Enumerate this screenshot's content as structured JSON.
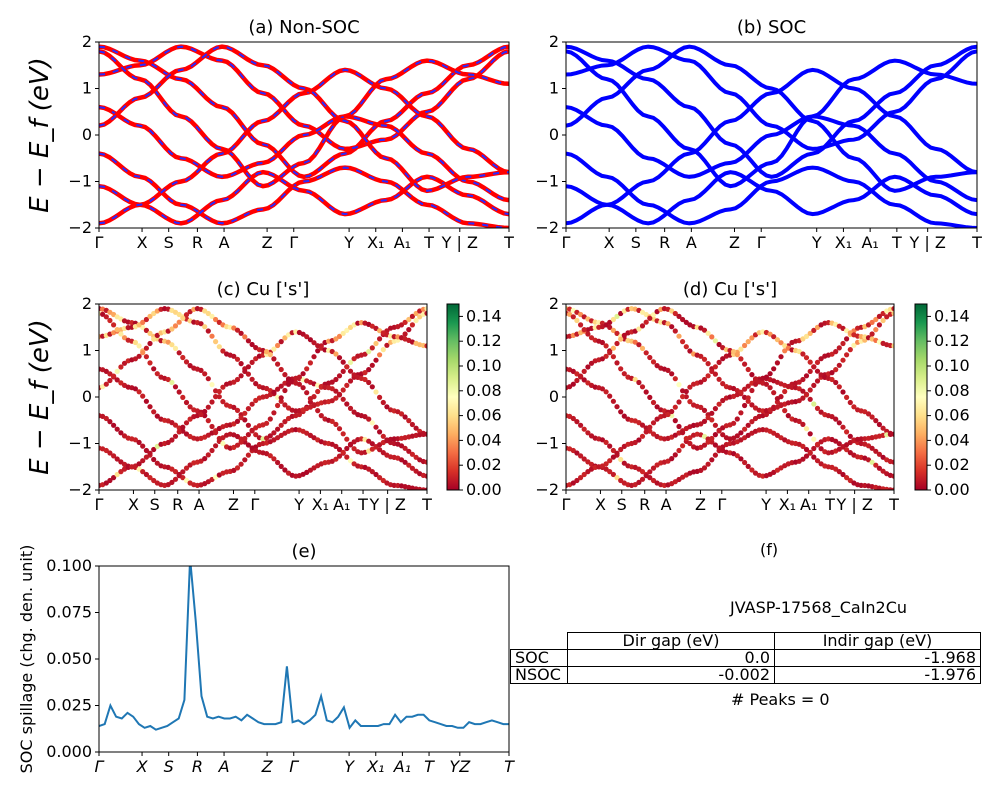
{
  "chart_data": [
    {
      "id": "a",
      "type": "line",
      "title": "(a) Non-SOC",
      "ylabel": "E − E_f (eV)",
      "ylim": [
        -2,
        2
      ],
      "yticks": [
        "2",
        "1",
        "0",
        "−1",
        "−2"
      ],
      "xticks": [
        "Γ",
        "X",
        "S",
        "R",
        "A",
        "Z",
        "Γ",
        "Y",
        "X₁",
        "A₁",
        "T",
        "Y | Z",
        "T"
      ],
      "series": [
        {
          "color": "#ff0000",
          "style": "solid"
        },
        {
          "color": "#2a2aff",
          "style": "dashed"
        }
      ],
      "bands": [
        [
          1.9,
          1.6,
          1.2,
          0.6,
          -0.2,
          -0.9,
          -0.4,
          0.3,
          0.9,
          1.5,
          1.9
        ],
        [
          1.3,
          1.5,
          1.9,
          1.6,
          0.9,
          0.2,
          -0.3,
          -0.1,
          0.5,
          1.2,
          1.8
        ],
        [
          0.6,
          0.2,
          -0.5,
          -0.9,
          -0.6,
          0.0,
          0.4,
          0.2,
          -0.4,
          -1.0,
          -1.4
        ],
        [
          -0.4,
          -0.9,
          -1.5,
          -1.9,
          -1.6,
          -1.0,
          -0.7,
          -1.0,
          -1.5,
          -1.9,
          -2.0
        ],
        [
          -1.1,
          -1.5,
          -1.9,
          -1.4,
          -0.8,
          -1.2,
          -1.7,
          -1.4,
          -0.9,
          -1.3,
          -1.7
        ],
        [
          1.8,
          1.2,
          0.4,
          -0.3,
          -1.1,
          -0.6,
          0.4,
          1.2,
          1.6,
          1.3,
          1.1
        ],
        [
          -1.9,
          -1.5,
          -1.0,
          -0.4,
          0.3,
          0.9,
          1.4,
          1.0,
          0.4,
          -0.3,
          -0.8
        ],
        [
          0.2,
          0.8,
          1.4,
          1.9,
          1.5,
          1.0,
          0.3,
          -0.5,
          -1.2,
          -0.9,
          -0.8
        ]
      ]
    },
    {
      "id": "b",
      "type": "line",
      "title": "(b) SOC",
      "ylim": [
        -2,
        2
      ],
      "yticks": [
        "2",
        "1",
        "0",
        "−1",
        "−2"
      ],
      "xticks": [
        "Γ",
        "X",
        "S",
        "R",
        "A",
        "Z",
        "Γ",
        "Y",
        "X₁",
        "A₁",
        "T",
        "Y | Z",
        "T"
      ],
      "series": [
        {
          "color": "#0000ff",
          "style": "solid"
        }
      ]
    },
    {
      "id": "c",
      "type": "scatter",
      "title": "(c)  Cu ['s']",
      "ylabel": "E − E_f (eV)",
      "ylim": [
        -2,
        2
      ],
      "yticks": [
        "2",
        "1",
        "0",
        "−1",
        "−2"
      ],
      "xticks": [
        "Γ",
        "X",
        "S",
        "R",
        "A",
        "Z",
        "Γ",
        "Y",
        "X₁",
        "A₁",
        "T",
        "Y | Z",
        "T"
      ],
      "colorbar": {
        "min": 0.0,
        "max": 0.15,
        "ticks": [
          "0.00",
          "0.02",
          "0.04",
          "0.06",
          "0.08",
          "0.10",
          "0.12",
          "0.14"
        ],
        "cmap": "RdYlGn"
      }
    },
    {
      "id": "d",
      "type": "scatter",
      "title": "(d) Cu ['s']",
      "ylim": [
        -2,
        2
      ],
      "yticks": [
        "2",
        "1",
        "0",
        "−1",
        "−2"
      ],
      "xticks": [
        "Γ",
        "X",
        "S",
        "R",
        "A",
        "Z",
        "Γ",
        "Y",
        "X₁",
        "A₁",
        "T",
        "Y | Z",
        "T"
      ],
      "colorbar": {
        "min": 0.0,
        "max": 0.15,
        "ticks": [
          "0.00",
          "0.02",
          "0.04",
          "0.06",
          "0.08",
          "0.10",
          "0.12",
          "0.14"
        ],
        "cmap": "RdYlGn"
      }
    },
    {
      "id": "e",
      "type": "line",
      "title": "(e)",
      "ylabel": "SOC spillage (chg. den. unit)",
      "ylim": [
        0,
        0.1
      ],
      "yticks": [
        "0.100",
        "0.075",
        "0.050",
        "0.025",
        "0.000"
      ],
      "xticks": [
        "Γ",
        "X",
        "S",
        "R",
        "A",
        "Z",
        "Γ",
        "Y",
        "X₁",
        "A₁",
        "T",
        "YZ",
        "T"
      ],
      "color": "#1f77b4",
      "values": [
        0.014,
        0.015,
        0.025,
        0.019,
        0.018,
        0.021,
        0.019,
        0.015,
        0.013,
        0.014,
        0.012,
        0.013,
        0.014,
        0.016,
        0.018,
        0.028,
        0.104,
        0.07,
        0.03,
        0.019,
        0.018,
        0.019,
        0.018,
        0.018,
        0.019,
        0.017,
        0.02,
        0.018,
        0.016,
        0.015,
        0.015,
        0.015,
        0.016,
        0.046,
        0.016,
        0.017,
        0.015,
        0.017,
        0.02,
        0.03,
        0.017,
        0.016,
        0.019,
        0.024,
        0.013,
        0.017,
        0.014,
        0.014,
        0.014,
        0.014,
        0.015,
        0.015,
        0.02,
        0.016,
        0.019,
        0.019,
        0.02,
        0.02,
        0.017,
        0.016,
        0.015,
        0.014,
        0.014,
        0.013,
        0.013,
        0.016,
        0.015,
        0.015,
        0.016,
        0.017,
        0.016,
        0.015,
        0.015
      ]
    }
  ],
  "panel_f": {
    "title": "(f)",
    "material": "JVASP-17568_CaIn2Cu",
    "table": {
      "col_headers": [
        "Dir gap (eV)",
        "Indir gap (eV)"
      ],
      "rows": [
        {
          "label": "SOC",
          "dir": "0.0",
          "indir": "-1.968"
        },
        {
          "label": "NSOC",
          "dir": "-0.002",
          "indir": "-1.976"
        }
      ]
    },
    "peaks": "# Peaks = 0"
  }
}
